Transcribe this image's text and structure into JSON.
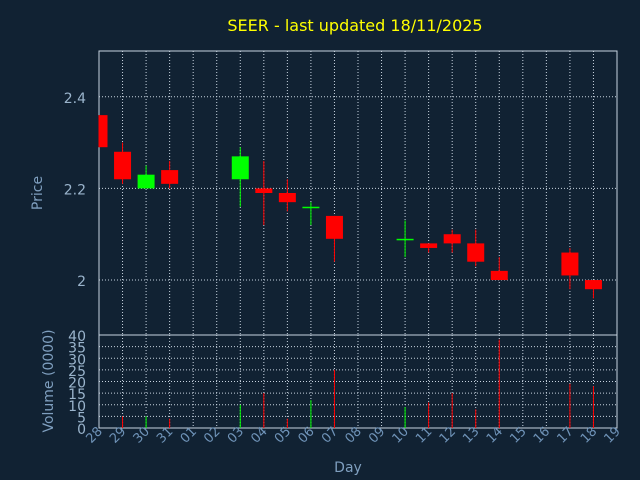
{
  "title": "SEER - last updated 18/11/2025",
  "colors": {
    "background": "#112233",
    "up": "#00ff00",
    "down": "#ff0000",
    "title": "#ffff00",
    "axis_text": "#7f9fbf"
  },
  "chart_data": [
    {
      "type": "candlestick",
      "ylabel": "Price",
      "ylim": [
        1.88,
        2.5
      ],
      "yticks": [
        2.0,
        2.2,
        2.4
      ],
      "ytick_labels": [
        "2",
        "2.2",
        "2.4"
      ],
      "grid": true,
      "categories": [
        "28",
        "29",
        "30",
        "31",
        "01",
        "02",
        "03",
        "04",
        "05",
        "06",
        "07",
        "08",
        "09",
        "10",
        "11",
        "12",
        "13",
        "14",
        "15",
        "16",
        "17",
        "18",
        "19"
      ],
      "candles": [
        {
          "day": "28",
          "open": 2.36,
          "high": 2.36,
          "low": 2.29,
          "close": 2.29
        },
        {
          "day": "29",
          "open": 2.28,
          "high": 2.3,
          "low": 2.21,
          "close": 2.22
        },
        {
          "day": "30",
          "open": 2.2,
          "high": 2.25,
          "low": 2.2,
          "close": 2.23
        },
        {
          "day": "31",
          "open": 2.24,
          "high": 2.26,
          "low": 2.2,
          "close": 2.21
        },
        {
          "day": "03",
          "open": 2.22,
          "high": 2.29,
          "low": 2.16,
          "close": 2.27
        },
        {
          "day": "04",
          "open": 2.2,
          "high": 2.26,
          "low": 2.12,
          "close": 2.19
        },
        {
          "day": "05",
          "open": 2.19,
          "high": 2.22,
          "low": 2.15,
          "close": 2.17
        },
        {
          "day": "06",
          "open": 2.16,
          "high": 2.17,
          "low": 2.12,
          "close": 2.16
        },
        {
          "day": "07",
          "open": 2.14,
          "high": 2.14,
          "low": 2.04,
          "close": 2.09
        },
        {
          "day": "10",
          "open": 2.09,
          "high": 2.13,
          "low": 2.05,
          "close": 2.09
        },
        {
          "day": "11",
          "open": 2.08,
          "high": 2.08,
          "low": 2.06,
          "close": 2.07
        },
        {
          "day": "12",
          "open": 2.1,
          "high": 2.11,
          "low": 2.06,
          "close": 2.08
        },
        {
          "day": "13",
          "open": 2.08,
          "high": 2.11,
          "low": 2.03,
          "close": 2.04
        },
        {
          "day": "14",
          "open": 2.02,
          "high": 2.05,
          "low": 2.0,
          "close": 2.0
        },
        {
          "day": "17",
          "open": 2.06,
          "high": 2.07,
          "low": 1.98,
          "close": 2.01
        },
        {
          "day": "18",
          "open": 2.0,
          "high": 2.0,
          "low": 1.96,
          "close": 1.98
        }
      ]
    },
    {
      "type": "bar",
      "ylabel": "Volume (0000)",
      "xlabel": "Day",
      "ylim": [
        0,
        40
      ],
      "yticks": [
        0,
        5,
        10,
        15,
        20,
        25,
        30,
        35,
        40
      ],
      "grid": true,
      "categories": [
        "28",
        "29",
        "30",
        "31",
        "01",
        "02",
        "03",
        "04",
        "05",
        "06",
        "07",
        "08",
        "09",
        "10",
        "11",
        "12",
        "13",
        "14",
        "15",
        "16",
        "17",
        "18",
        "19"
      ],
      "series": [
        {
          "points": [
            {
              "day": "29",
              "value": 5,
              "color": "down"
            },
            {
              "day": "30",
              "value": 5,
              "color": "up"
            },
            {
              "day": "31",
              "value": 4,
              "color": "down"
            },
            {
              "day": "03",
              "value": 10,
              "color": "up"
            },
            {
              "day": "04",
              "value": 15,
              "color": "down"
            },
            {
              "day": "05",
              "value": 4,
              "color": "down"
            },
            {
              "day": "06",
              "value": 12,
              "color": "up"
            },
            {
              "day": "07",
              "value": 25,
              "color": "down"
            },
            {
              "day": "10",
              "value": 9,
              "color": "up"
            },
            {
              "day": "11",
              "value": 11,
              "color": "down"
            },
            {
              "day": "12",
              "value": 15,
              "color": "down"
            },
            {
              "day": "13",
              "value": 8,
              "color": "down"
            },
            {
              "day": "14",
              "value": 38,
              "color": "down"
            },
            {
              "day": "17",
              "value": 19,
              "color": "down"
            },
            {
              "day": "18",
              "value": 18,
              "color": "down"
            }
          ]
        }
      ]
    }
  ]
}
